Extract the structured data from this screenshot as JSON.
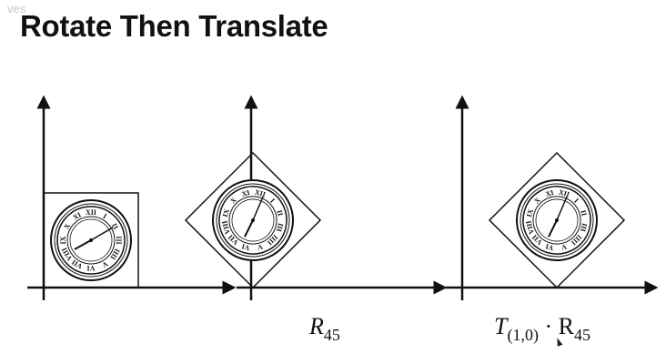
{
  "slide": {
    "title": "Rotate Then Translate",
    "watermark": "ves"
  },
  "panels": [
    {
      "label_main": "",
      "label_sub": "",
      "label_tail": ""
    },
    {
      "label_main": "R",
      "label_sub": "45",
      "label_tail": ""
    },
    {
      "label_main": "T",
      "label_sub": "(1,0)",
      "label_tail": "· R",
      "label_tail_sub": "45"
    }
  ],
  "clock": {
    "numerals": [
      "XII",
      "I",
      "II",
      "III",
      "IIII",
      "V",
      "VI",
      "VII",
      "VIII",
      "IX",
      "X",
      "XI"
    ]
  },
  "colors": {
    "ink": "#111111",
    "background": "#ffffff"
  }
}
